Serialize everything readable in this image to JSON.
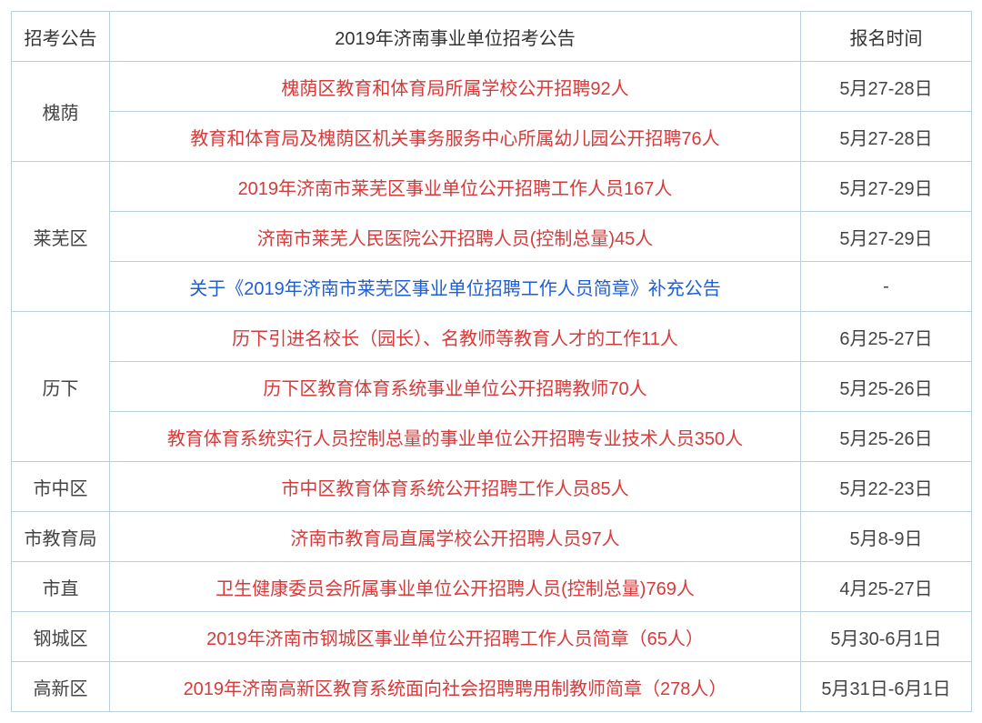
{
  "header": {
    "col1": "招考公告",
    "col2": "2019年济南事业单位招考公告",
    "col3": "报名时间"
  },
  "groups": [
    {
      "district": "槐荫",
      "rows": [
        {
          "title": "槐荫区教育和体育局所属学校公开招聘92人",
          "date": "5月27-28日",
          "color": "red"
        },
        {
          "title": "教育和体育局及槐荫区机关事务服务中心所属幼儿园公开招聘76人",
          "date": "5月27-28日",
          "color": "red"
        }
      ]
    },
    {
      "district": "莱芜区",
      "rows": [
        {
          "title": "2019年济南市莱芜区事业单位公开招聘工作人员167人",
          "date": "5月27-29日",
          "color": "red"
        },
        {
          "title": "济南市莱芜人民医院公开招聘人员(控制总量)45人",
          "date": "5月27-29日",
          "color": "red"
        },
        {
          "title": "关于《2019年济南市莱芜区事业单位招聘工作人员简章》补充公告",
          "date": "-",
          "color": "blue"
        }
      ]
    },
    {
      "district": "历下",
      "rows": [
        {
          "title": "历下引进名校长（园长）、名教师等教育人才的工作11人",
          "date": "6月25-27日",
          "color": "red"
        },
        {
          "title": "历下区教育体育系统事业单位公开招聘教师70人",
          "date": "5月25-26日",
          "color": "red"
        },
        {
          "title": "教育体育系统实行人员控制总量的事业单位公开招聘专业技术人员350人",
          "date": "5月25-26日",
          "color": "red"
        }
      ]
    },
    {
      "district": "市中区",
      "rows": [
        {
          "title": "市中区教育体育系统公开招聘工作人员85人",
          "date": "5月22-23日",
          "color": "red"
        }
      ]
    },
    {
      "district": "市教育局",
      "rows": [
        {
          "title": "济南市教育局直属学校公开招聘人员97人",
          "date": "5月8-9日",
          "color": "red"
        }
      ]
    },
    {
      "district": "市直",
      "rows": [
        {
          "title": "卫生健康委员会所属事业单位公开招聘人员(控制总量)769人",
          "date": "4月25-27日",
          "color": "red"
        }
      ]
    },
    {
      "district": "钢城区",
      "rows": [
        {
          "title": "2019年济南市钢城区事业单位公开招聘工作人员简章（65人）",
          "date": "5月30-6月1日",
          "color": "red"
        }
      ]
    },
    {
      "district": "高新区",
      "rows": [
        {
          "title": "2019年济南高新区教育系统面向社会招聘聘用制教师简章（278人）",
          "date": "5月31日-6月1日",
          "color": "red"
        }
      ]
    }
  ]
}
